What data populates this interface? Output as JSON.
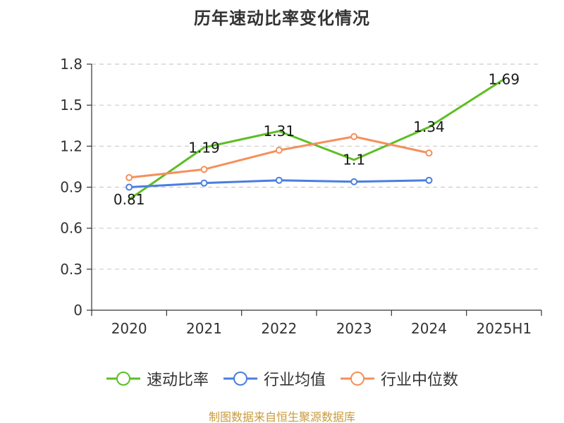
{
  "title": "历年速动比率变化情况",
  "source_text": "制图数据来自恒生聚源数据库",
  "chart_data": {
    "type": "line",
    "title": "历年速动比率变化情况",
    "categories": [
      "2020",
      "2021",
      "2022",
      "2023",
      "2024",
      "2025H1"
    ],
    "ylim": [
      0,
      1.8
    ],
    "yticks": [
      0,
      0.3,
      0.6,
      0.9,
      1.2,
      1.5,
      1.8
    ],
    "ytick_labels": [
      "0",
      "0.3",
      "0.6",
      "0.9",
      "1.2",
      "1.5",
      "1.8"
    ],
    "grid": true,
    "legend_position": "bottom",
    "series": [
      {
        "name": "速动比率",
        "color": "#5dbe24",
        "values": [
          0.81,
          1.19,
          1.31,
          1.1,
          1.34,
          1.69
        ],
        "show_markers": false,
        "data_labels": [
          "0.81",
          "1.19",
          "1.31",
          "1.1",
          "1.34",
          "1.69"
        ]
      },
      {
        "name": "行业均值",
        "color": "#4a7ee0",
        "values": [
          0.9,
          0.93,
          0.95,
          0.94,
          0.95,
          null
        ],
        "show_markers": true
      },
      {
        "name": "行业中位数",
        "color": "#f5905a",
        "values": [
          0.97,
          1.03,
          1.17,
          1.27,
          1.15,
          null
        ],
        "show_markers": true
      }
    ]
  }
}
